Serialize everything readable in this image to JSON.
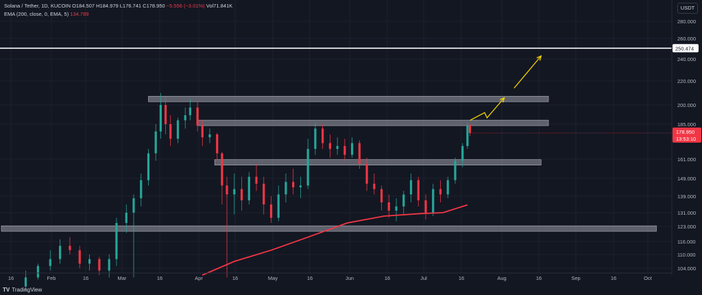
{
  "legend": {
    "symbol": "Solana / Tether, 1D, KUCOIN",
    "open": "O184.507",
    "high": "H184.979",
    "low": "L176.741",
    "close": "C178.950",
    "change": "−5.556 (−3.01%)",
    "volume": "Vol71.841K",
    "ema_label": "EMA (200, close, 0, EMA, 5)",
    "ema_value": "134.789"
  },
  "currency": "USDT",
  "footer": {
    "brand": "TradingView",
    "logo": "TV"
  },
  "colors": {
    "background": "#131722",
    "up": "#26a69a",
    "down": "#f23645",
    "ema": "#f23645",
    "zone": "#787b86",
    "arrow": "#f5d300",
    "line": "#ffffff",
    "price_tag": "#f23645"
  },
  "chart_data": {
    "type": "candlestick",
    "y_ticks": [
      "280.000",
      "260.000",
      "240.000",
      "220.000",
      "200.000",
      "185.000",
      "161.000",
      "149.000",
      "139.000",
      "131.000",
      "123.000",
      "116.000",
      "110.000",
      "104.000"
    ],
    "x_ticks": [
      "16",
      "Feb",
      "16",
      "Mar",
      "16",
      "Apr",
      "16",
      "May",
      "16",
      "Jun",
      "16",
      "Jul",
      "16",
      "Aug",
      "16",
      "Sep",
      "16",
      "Oct"
    ],
    "horizontal_line": {
      "value": 250.474,
      "label": "250.474"
    },
    "last_price": {
      "value": 178.95,
      "label": "178.950",
      "countdown": "13:53:10"
    },
    "zones": [
      {
        "from": "Mar 12",
        "to": "Aug 22",
        "value": 205
      },
      {
        "from": "Apr 01",
        "to": "Aug 22",
        "value": 186
      },
      {
        "from": "Apr 08",
        "to": "Aug 19",
        "value": 159
      },
      {
        "from": "Jan 01",
        "to": "Oct 05",
        "value": 122
      }
    ],
    "arrow_path": [
      {
        "date": "Jul 21",
        "value": 188
      },
      {
        "date": "Jul 27",
        "value": 194
      },
      {
        "date": "Jul 28",
        "value": 190
      },
      {
        "date": "Aug 04",
        "value": 206
      },
      {
        "date": "Aug 08",
        "value": 214
      },
      {
        "date": "Aug 19",
        "value": 243
      }
    ],
    "ema_path": [
      {
        "date": "Apr 03",
        "value": 101
      },
      {
        "date": "Apr 16",
        "value": 107
      },
      {
        "date": "May 01",
        "value": 112
      },
      {
        "date": "May 16",
        "value": 118
      },
      {
        "date": "Jun 01",
        "value": 125
      },
      {
        "date": "Jun 16",
        "value": 129
      },
      {
        "date": "Jul 01",
        "value": 130.5
      },
      {
        "date": "Jul 10",
        "value": 131
      },
      {
        "date": "Jul 20",
        "value": 134.8
      }
    ],
    "candles": [
      [
        "Jan 22",
        96,
        103,
        94,
        100
      ],
      [
        "Jan 27",
        100,
        106,
        99,
        105
      ],
      [
        "Feb 01",
        105,
        112,
        103,
        108
      ],
      [
        "Feb 05",
        108,
        117,
        106,
        114
      ],
      [
        "Feb 09",
        114,
        118,
        110,
        112
      ],
      [
        "Feb 13",
        112,
        114,
        104,
        106
      ],
      [
        "Feb 17",
        106,
        110,
        103,
        108
      ],
      [
        "Feb 21",
        108,
        109,
        101,
        103
      ],
      [
        "Feb 25",
        103,
        110,
        100,
        108
      ],
      [
        "Feb 28",
        108,
        128,
        105,
        125
      ],
      [
        "Mar 03",
        125,
        135,
        120,
        131
      ],
      [
        "Mar 06",
        131,
        140,
        100,
        138
      ],
      [
        "Mar 09",
        138,
        152,
        134,
        148
      ],
      [
        "Mar 12",
        148,
        168,
        145,
        165
      ],
      [
        "Mar 15",
        165,
        185,
        160,
        180
      ],
      [
        "Mar 17",
        180,
        210,
        175,
        200
      ],
      [
        "Mar 19",
        200,
        207,
        178,
        185
      ],
      [
        "Mar 21",
        185,
        192,
        170,
        175
      ],
      [
        "Mar 24",
        175,
        190,
        172,
        188
      ],
      [
        "Mar 27",
        188,
        198,
        182,
        192
      ],
      [
        "Mar 29",
        192,
        205,
        188,
        198
      ],
      [
        "Apr 01",
        198,
        203,
        180,
        184
      ],
      [
        "Apr 03",
        184,
        188,
        170,
        176
      ],
      [
        "Apr 06",
        176,
        182,
        172,
        178
      ],
      [
        "Apr 09",
        178,
        179,
        160,
        165
      ],
      [
        "Apr 11",
        165,
        166,
        135,
        145
      ],
      [
        "Apr 13",
        145,
        150,
        100,
        140
      ],
      [
        "Apr 16",
        140,
        152,
        130,
        143
      ],
      [
        "Apr 19",
        143,
        150,
        132,
        137
      ],
      [
        "Apr 22",
        137,
        153,
        135,
        150
      ],
      [
        "Apr 25",
        150,
        158,
        142,
        146
      ],
      [
        "Apr 28",
        146,
        150,
        130,
        135
      ],
      [
        "May 01",
        135,
        139,
        125,
        128
      ],
      [
        "May 04",
        128,
        145,
        126,
        140
      ],
      [
        "May 07",
        140,
        152,
        136,
        147
      ],
      [
        "May 10",
        147,
        155,
        140,
        144
      ],
      [
        "May 13",
        144,
        150,
        138,
        145
      ],
      [
        "May 16",
        145,
        175,
        143,
        168
      ],
      [
        "May 19",
        168,
        186,
        164,
        182
      ],
      [
        "May 22",
        182,
        185,
        168,
        172
      ],
      [
        "May 25",
        172,
        178,
        162,
        168
      ],
      [
        "May 28",
        168,
        176,
        164,
        170
      ],
      [
        "May 31",
        170,
        175,
        160,
        164
      ],
      [
        "Jun 03",
        164,
        176,
        162,
        172
      ],
      [
        "Jun 06",
        172,
        174,
        155,
        158
      ],
      [
        "Jun 09",
        158,
        162,
        142,
        146
      ],
      [
        "Jun 12",
        146,
        152,
        140,
        143
      ],
      [
        "Jun 15",
        143,
        145,
        132,
        136
      ],
      [
        "Jun 18",
        136,
        140,
        128,
        132
      ],
      [
        "Jun 21",
        132,
        138,
        126,
        134
      ],
      [
        "Jun 24",
        134,
        142,
        130,
        140
      ],
      [
        "Jun 27",
        140,
        152,
        136,
        148
      ],
      [
        "Jun 30",
        148,
        150,
        134,
        137
      ],
      [
        "Jul 03",
        137,
        140,
        127,
        131
      ],
      [
        "Jul 06",
        131,
        146,
        129,
        143
      ],
      [
        "Jul 09",
        143,
        148,
        136,
        140
      ],
      [
        "Jul 12",
        140,
        150,
        138,
        148
      ],
      [
        "Jul 15",
        148,
        162,
        146,
        160
      ],
      [
        "Jul 18",
        160,
        172,
        156,
        170
      ],
      [
        "Jul 20",
        170,
        186,
        168,
        184
      ],
      [
        "Jul 21",
        184.507,
        184.979,
        176.741,
        178.95
      ]
    ]
  }
}
